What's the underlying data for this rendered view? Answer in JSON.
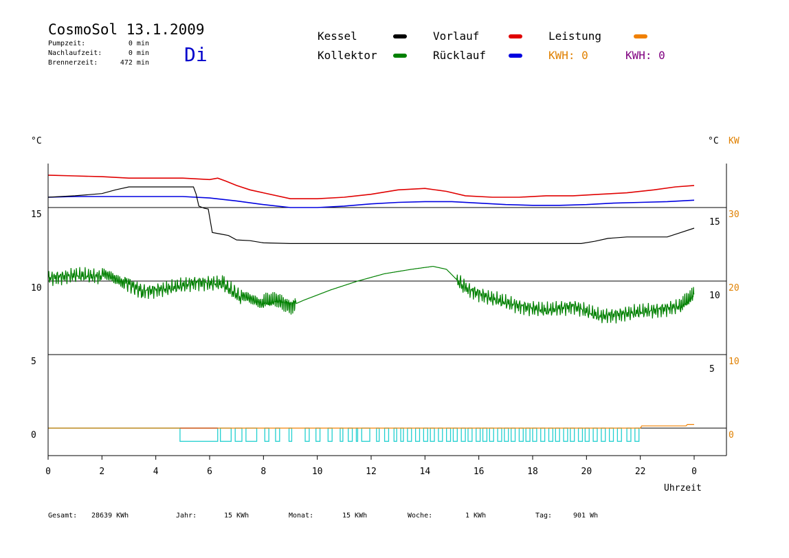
{
  "header": {
    "title": "CosmoSol 13.1.2009",
    "day": "Di",
    "info": [
      {
        "label": "Pumpzeit:",
        "value": "0 min"
      },
      {
        "label": "Nachlaufzeit:",
        "value": "0 min"
      },
      {
        "label": "Brennerzeit:",
        "value": "472 min"
      }
    ]
  },
  "legend": {
    "kessel": {
      "label": "Kessel",
      "color": "#000000"
    },
    "kollektor": {
      "label": "Kollektor",
      "color": "#008000"
    },
    "vorlauf": {
      "label": "Vorlauf",
      "color": "#e00000"
    },
    "ruecklauf": {
      "label": "Rücklauf",
      "color": "#0000e0"
    },
    "leistung": {
      "label": "Leistung",
      "color": "#f08000"
    },
    "kwh_orange": "KWH: 0",
    "kwh_purple": "KWH: 0",
    "kwh_purple_color": "#800080"
  },
  "footer": [
    {
      "label": "Gesamt:",
      "value": "28639 KWh"
    },
    {
      "label": "Jahr:",
      "value": "15 KWh"
    },
    {
      "label": "Monat:",
      "value": "15 KWh"
    },
    {
      "label": "Woche:",
      "value": "1 KWh"
    },
    {
      "label": "Tag:",
      "value": "901 Wh"
    }
  ],
  "chart_data": {
    "type": "line",
    "xlabel": "Uhrzeit",
    "ylabel_left": "°C",
    "ylabel_right": "°C",
    "ylabel_right2": "KW",
    "x_ticks": [
      "0",
      "2",
      "4",
      "6",
      "8",
      "10",
      "12",
      "14",
      "16",
      "18",
      "20",
      "22",
      "0"
    ],
    "xlim": [
      0,
      24
    ],
    "ylim_left": [
      -1.8,
      18
    ],
    "y_ticks_left": [
      0,
      5,
      10,
      15
    ],
    "y_ticks_right": [
      5,
      10,
      15
    ],
    "y_ticks_right_kw": [
      0,
      10,
      20,
      30
    ],
    "grid_y": [
      0,
      5,
      10,
      15
    ],
    "series": [
      {
        "name": "Vorlauf",
        "color": "#e00000",
        "x": [
          0,
          1,
          2,
          3,
          4,
          5,
          6,
          6.3,
          6.6,
          7,
          7.5,
          8,
          9,
          10,
          11,
          12,
          13,
          14,
          14.8,
          15.5,
          16.5,
          17.5,
          18.5,
          19.5,
          20.5,
          21.5,
          22.5,
          23.3,
          24
        ],
        "y": [
          17.2,
          17.15,
          17.1,
          17.0,
          17.0,
          17.0,
          16.9,
          17.0,
          16.8,
          16.5,
          16.2,
          16.0,
          15.6,
          15.6,
          15.7,
          15.9,
          16.2,
          16.3,
          16.1,
          15.8,
          15.7,
          15.7,
          15.8,
          15.8,
          15.9,
          16.0,
          16.2,
          16.4,
          16.5
        ]
      },
      {
        "name": "Rücklauf",
        "color": "#0000e0",
        "x": [
          0,
          1,
          2,
          3,
          4,
          5,
          6,
          7,
          8,
          9,
          10,
          11,
          12,
          13,
          14,
          15,
          16,
          17,
          18,
          19,
          20,
          21,
          22,
          23,
          24
        ],
        "y": [
          15.7,
          15.75,
          15.75,
          15.75,
          15.75,
          15.75,
          15.65,
          15.45,
          15.2,
          15.0,
          15.0,
          15.1,
          15.25,
          15.35,
          15.4,
          15.4,
          15.3,
          15.2,
          15.15,
          15.15,
          15.2,
          15.3,
          15.35,
          15.4,
          15.5
        ]
      },
      {
        "name": "Kessel",
        "color": "#000000",
        "x": [
          0,
          1,
          2,
          2.5,
          3,
          5.4,
          5.5,
          5.6,
          5.8,
          5.95,
          6.1,
          6.4,
          6.7,
          7.0,
          7.5,
          8.0,
          9,
          12,
          15,
          18,
          19.8,
          20.3,
          20.8,
          21.5,
          22.5,
          23.0,
          23.5,
          24
        ],
        "y": [
          15.7,
          15.8,
          15.95,
          16.2,
          16.4,
          16.4,
          15.9,
          15.1,
          14.95,
          14.9,
          13.3,
          13.2,
          13.1,
          12.8,
          12.75,
          12.6,
          12.55,
          12.55,
          12.55,
          12.55,
          12.55,
          12.7,
          12.9,
          13.0,
          13.0,
          13.0,
          13.3,
          13.6
        ]
      },
      {
        "name": "Kollektor",
        "color": "#008000",
        "x": [
          0,
          1,
          2,
          2.8,
          3.5,
          4.5,
          5.5,
          6.5,
          7.2,
          8.0,
          8.5,
          9.0,
          9.5,
          10.5,
          11.5,
          12.5,
          13.5,
          14.3,
          14.8,
          15.5,
          16.5,
          17.5,
          18.5,
          19.5,
          20.5,
          21.5,
          22.5,
          23.5,
          24
        ],
        "y": [
          10.2,
          10.4,
          10.3,
          10.0,
          9.3,
          9.5,
          9.9,
          9.8,
          8.8,
          8.6,
          8.7,
          8.3,
          8.7,
          9.4,
          10.0,
          10.5,
          10.8,
          11.0,
          10.8,
          9.5,
          8.8,
          8.3,
          8.0,
          8.3,
          7.6,
          7.8,
          8.0,
          8.3,
          9.1
        ]
      },
      {
        "name": "Leistung",
        "color": "#f08000",
        "x": [
          0,
          22,
          22.05,
          23.7,
          23.75,
          24
        ],
        "y": [
          0,
          0,
          0.15,
          0.15,
          0.25,
          0.25
        ]
      }
    ],
    "cyan_pulses": {
      "color": "#20d0d0",
      "baseline": 0,
      "height": -0.9,
      "intervals": [
        [
          4.9,
          6.3
        ],
        [
          6.4,
          6.8
        ],
        [
          6.95,
          7.2
        ],
        [
          7.35,
          7.75
        ],
        [
          8.05,
          8.2
        ],
        [
          8.45,
          8.6
        ],
        [
          8.95,
          9.05
        ],
        [
          9.55,
          9.7
        ],
        [
          9.95,
          10.1
        ],
        [
          10.4,
          10.55
        ],
        [
          10.85,
          10.95
        ],
        [
          11.15,
          11.3
        ],
        [
          11.45,
          11.5
        ],
        [
          11.65,
          11.95
        ],
        [
          12.2,
          12.3
        ],
        [
          12.5,
          12.65
        ],
        [
          12.85,
          12.95
        ],
        [
          13.1,
          13.2
        ],
        [
          13.35,
          13.5
        ],
        [
          13.65,
          13.8
        ],
        [
          13.95,
          14.1
        ],
        [
          14.2,
          14.35
        ],
        [
          14.5,
          14.65
        ],
        [
          14.8,
          14.95
        ],
        [
          15.05,
          15.2
        ],
        [
          15.35,
          15.5
        ],
        [
          15.6,
          15.75
        ],
        [
          15.9,
          16.05
        ],
        [
          16.15,
          16.3
        ],
        [
          16.4,
          16.55
        ],
        [
          16.7,
          16.85
        ],
        [
          16.95,
          17.1
        ],
        [
          17.2,
          17.35
        ],
        [
          17.5,
          17.65
        ],
        [
          17.75,
          17.9
        ],
        [
          18.0,
          18.15
        ],
        [
          18.3,
          18.45
        ],
        [
          18.6,
          18.75
        ],
        [
          18.85,
          19.0
        ],
        [
          19.15,
          19.3
        ],
        [
          19.4,
          19.55
        ],
        [
          19.7,
          19.85
        ],
        [
          19.95,
          20.1
        ],
        [
          20.25,
          20.4
        ],
        [
          20.55,
          20.7
        ],
        [
          20.85,
          21.0
        ],
        [
          21.15,
          21.3
        ],
        [
          21.5,
          21.65
        ],
        [
          21.8,
          21.95
        ]
      ],
      "magenta_interval": [
        4.9,
        6.3
      ]
    }
  }
}
